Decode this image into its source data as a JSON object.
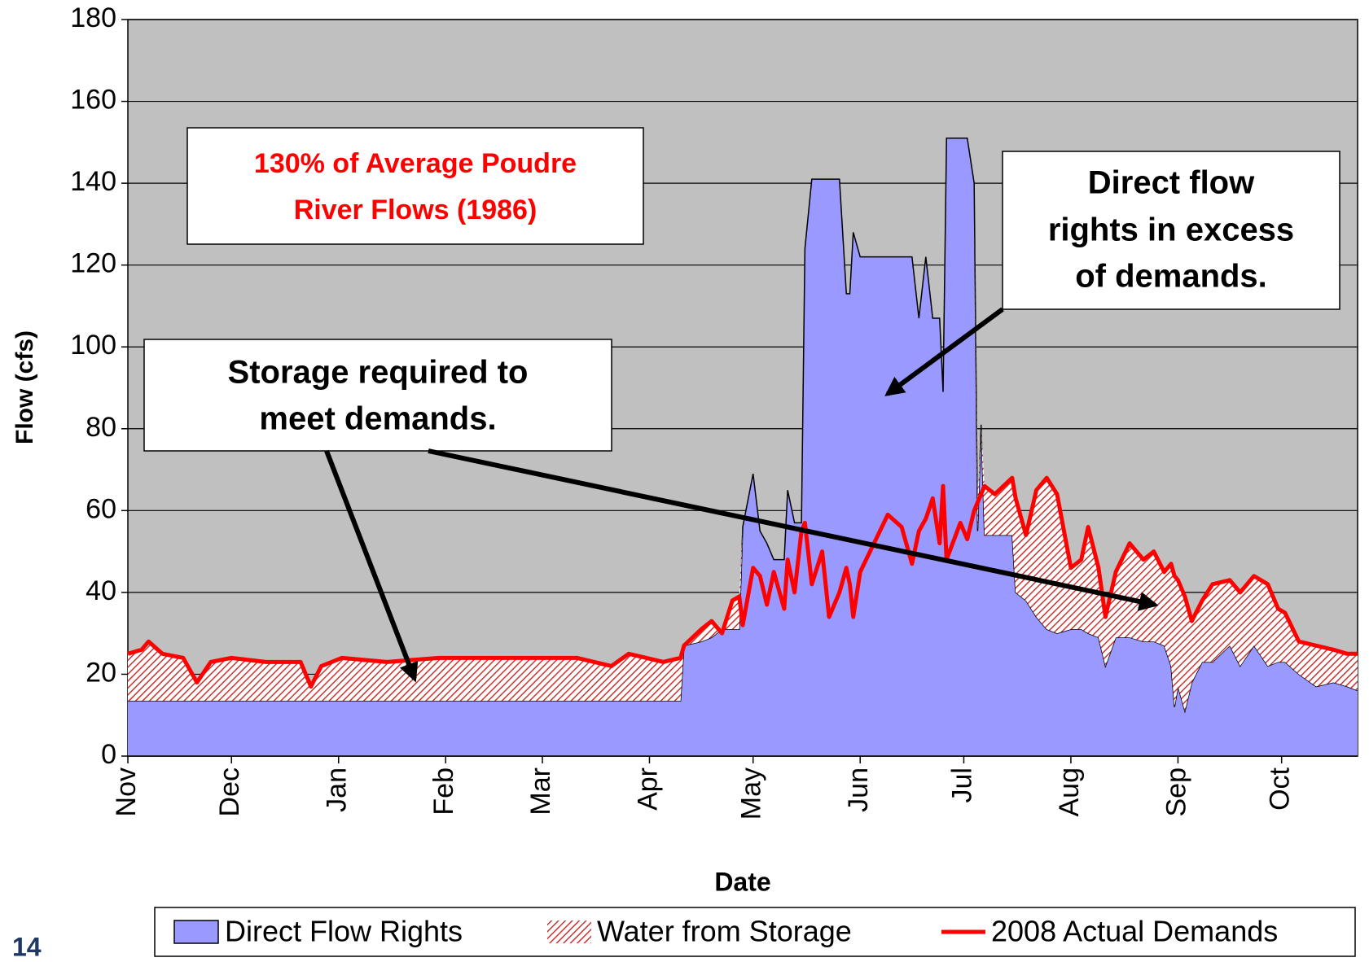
{
  "chart_data": {
    "type": "stacked_area_line",
    "xlabel": "Date",
    "ylabel": "Flow (cfs)",
    "x": [
      0,
      4,
      6,
      10,
      16,
      20,
      24,
      30,
      40,
      50,
      53,
      56,
      62,
      75,
      90,
      110,
      130,
      140,
      145,
      155,
      160,
      161,
      166,
      169,
      172,
      175,
      177,
      178,
      181,
      183,
      185,
      187,
      190,
      191,
      193,
      195,
      196,
      198,
      201,
      203,
      206,
      208,
      209,
      210,
      212,
      216,
      220,
      224,
      227,
      229,
      231,
      233,
      235,
      236,
      237,
      241,
      243,
      245,
      246,
      247,
      248,
      251,
      256,
      257,
      260,
      263,
      266,
      269,
      273,
      276,
      278,
      281,
      283,
      286,
      290,
      294,
      297,
      300,
      302,
      303,
      304,
      306,
      308,
      311,
      314,
      319,
      322,
      326,
      330,
      333,
      335,
      339,
      344,
      349,
      353,
      356
    ],
    "series": [
      {
        "name": "Direct Flow Rights",
        "color": "#9999ff",
        "kind": "area",
        "values": [
          13.5,
          13.5,
          13.5,
          13.5,
          13.5,
          13.5,
          13.5,
          13.5,
          13.5,
          13.5,
          13.5,
          13.5,
          13.5,
          13.5,
          13.5,
          13.5,
          13.5,
          13.5,
          13.5,
          13.5,
          13.5,
          27,
          28,
          29,
          31,
          31,
          31,
          56,
          69,
          55,
          52,
          48,
          48,
          65,
          57,
          57,
          124,
          141,
          141,
          141,
          141,
          113,
          113,
          128,
          122,
          122,
          122,
          122,
          122,
          107,
          122,
          107,
          107,
          89,
          151,
          151,
          151,
          140,
          55,
          81,
          54,
          54,
          54,
          40,
          38,
          34,
          31,
          30,
          31,
          31,
          30,
          29,
          22,
          29,
          29,
          28,
          28,
          27,
          22,
          12,
          17,
          11,
          18,
          23,
          23,
          27,
          22,
          27,
          22,
          23,
          23,
          20,
          17,
          18,
          17,
          16
        ]
      },
      {
        "name": "Water from Storage",
        "color": "#cc3333",
        "kind": "hatch",
        "values": [
          11.5,
          12.5,
          14.5,
          11.5,
          10.5,
          4.5,
          9.5,
          10.5,
          9.5,
          9.5,
          3.5,
          8.5,
          10.5,
          9.5,
          10.5,
          10.5,
          10.5,
          8.5,
          11.5,
          9.5,
          10.5,
          0,
          3,
          4,
          0,
          7,
          8,
          0,
          0,
          0,
          0,
          0,
          0,
          0,
          0,
          0,
          0,
          0,
          0,
          0,
          0,
          0,
          0,
          0,
          0,
          0,
          0,
          0,
          0,
          0,
          0,
          0,
          0,
          0,
          0,
          0,
          0,
          0,
          7,
          0,
          12,
          10,
          14,
          23,
          16,
          31,
          37,
          34,
          15,
          17,
          26,
          17,
          12,
          16,
          23,
          20,
          22,
          18,
          25,
          32,
          26,
          28,
          15,
          15,
          19,
          16,
          18,
          17,
          20,
          13,
          12,
          8,
          10,
          8,
          8,
          9
        ]
      },
      {
        "name": "2008 Actual Demands",
        "color": "#ff0000",
        "kind": "line",
        "values": [
          25,
          26,
          28,
          25,
          24,
          18,
          23,
          24,
          23,
          23,
          17,
          22,
          24,
          23,
          24,
          24,
          24,
          22,
          25,
          23,
          24,
          27,
          31,
          33,
          30,
          38,
          39,
          32,
          46,
          44,
          37,
          45,
          36,
          48,
          40,
          55,
          57,
          42,
          50,
          34,
          40,
          46,
          42,
          34,
          45,
          52,
          59,
          56,
          47,
          55,
          58,
          63,
          52,
          66,
          48,
          57,
          53,
          60,
          62,
          64,
          66,
          64,
          68,
          63,
          54,
          65,
          68,
          64,
          46,
          48,
          56,
          46,
          34,
          45,
          52,
          48,
          50,
          45,
          47,
          44,
          43,
          39,
          33,
          38,
          42,
          43,
          40,
          44,
          42,
          36,
          35,
          28,
          27,
          26,
          25,
          25
        ]
      }
    ],
    "xlim": [
      0,
      356
    ],
    "xticks": [
      {
        "value": 0,
        "label": "Nov"
      },
      {
        "value": 30,
        "label": "Dec"
      },
      {
        "value": 61,
        "label": "Jan"
      },
      {
        "value": 92,
        "label": "Feb"
      },
      {
        "value": 120,
        "label": "Mar"
      },
      {
        "value": 151,
        "label": "Apr"
      },
      {
        "value": 181,
        "label": "May"
      },
      {
        "value": 212,
        "label": "Jun"
      },
      {
        "value": 242,
        "label": "Jul"
      },
      {
        "value": 273,
        "label": "Aug"
      },
      {
        "value": 304,
        "label": "Sep"
      },
      {
        "value": 334,
        "label": "Oct"
      }
    ],
    "ylim": [
      0,
      180
    ],
    "yticks": [
      0,
      20,
      40,
      60,
      80,
      100,
      120,
      140,
      160,
      180
    ],
    "grid": true,
    "legend": "bottom",
    "annotations": [
      {
        "lines": [
          "130% of Average Poudre",
          "River Flows (1986)"
        ]
      },
      {
        "lines": [
          "Direct flow",
          "rights in excess",
          "of demands."
        ]
      },
      {
        "lines": [
          "Storage required to",
          "meet demands."
        ]
      }
    ]
  },
  "page_number": "14"
}
